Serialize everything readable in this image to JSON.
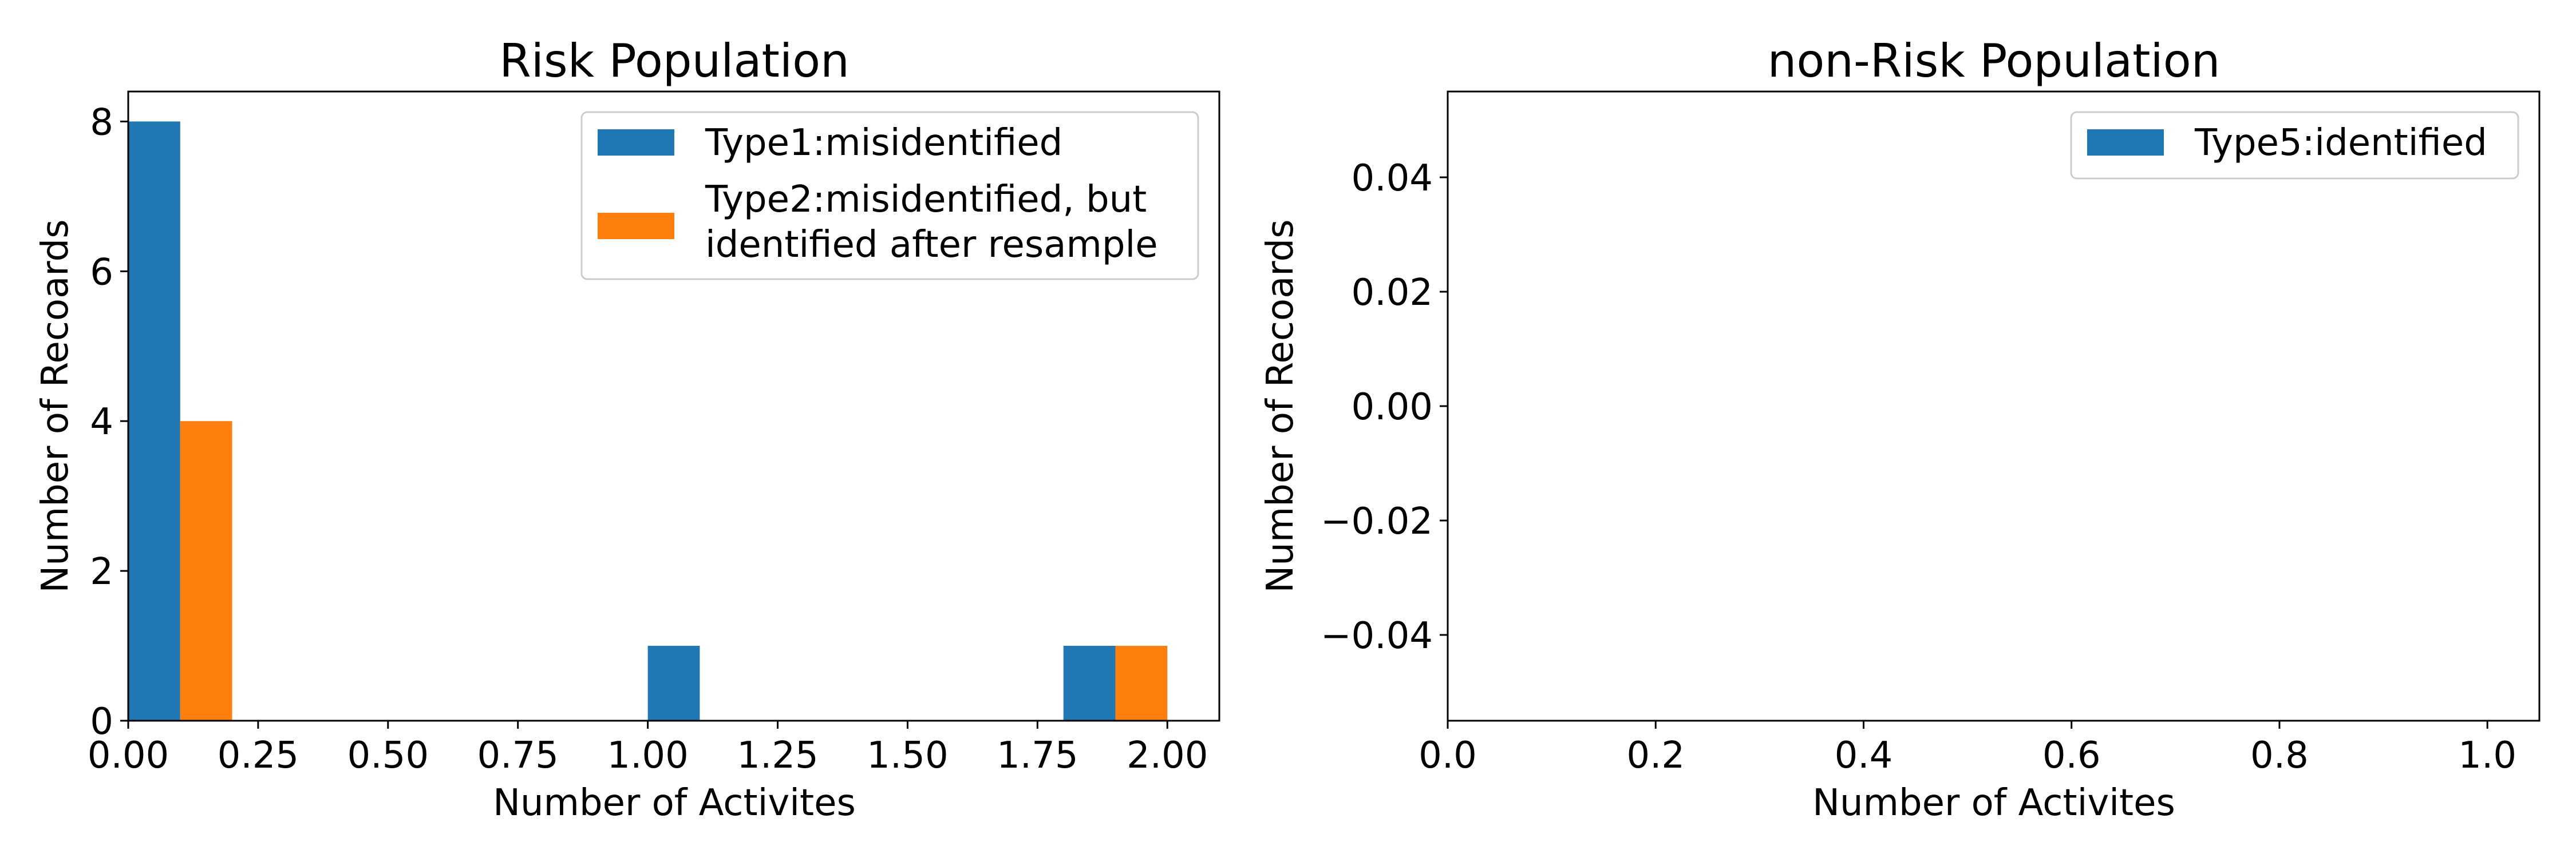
{
  "chart_data": [
    {
      "type": "bar",
      "title": "Risk Population",
      "xlabel": "Number of Activites",
      "ylabel": "Number of Recoards",
      "xlim": [
        0,
        2.1
      ],
      "ylim": [
        0,
        8.4
      ],
      "xticks": [
        "0.00",
        "0.25",
        "0.50",
        "0.75",
        "1.00",
        "1.25",
        "1.50",
        "1.75",
        "2.00"
      ],
      "yticks": [
        "0",
        "2",
        "4",
        "6",
        "8"
      ],
      "grid": false,
      "legend_position": "top-right",
      "series": [
        {
          "name": "Type1:misidentified",
          "color": "#1f77b4",
          "bins": [
            {
              "x0": 0.0,
              "x1": 0.1,
              "value": 8
            },
            {
              "x0": 1.0,
              "x1": 1.1,
              "value": 1
            },
            {
              "x0": 1.8,
              "x1": 1.9,
              "value": 1
            }
          ]
        },
        {
          "name": "Type2:misidentified, but identified after resample",
          "legend_lines": [
            "Type2:misidentified, but",
            "identified after resample"
          ],
          "color": "#ff7f0e",
          "bins": [
            {
              "x0": 0.1,
              "x1": 0.2,
              "value": 4
            },
            {
              "x0": 1.9,
              "x1": 2.0,
              "value": 1
            }
          ]
        }
      ]
    },
    {
      "type": "bar",
      "title": "non-Risk Population",
      "xlabel": "Number of Activites",
      "ylabel": "Number of Recoards",
      "xlim": [
        0,
        1.05
      ],
      "ylim": [
        -0.055,
        0.055
      ],
      "xticks": [
        "0.0",
        "0.2",
        "0.4",
        "0.6",
        "0.8",
        "1.0"
      ],
      "yticks": [
        "−0.04",
        "−0.02",
        "0.00",
        "0.02",
        "0.04"
      ],
      "grid": false,
      "legend_position": "top-right",
      "series": [
        {
          "name": "Type5:identified",
          "color": "#1f77b4",
          "bins": []
        }
      ]
    }
  ]
}
